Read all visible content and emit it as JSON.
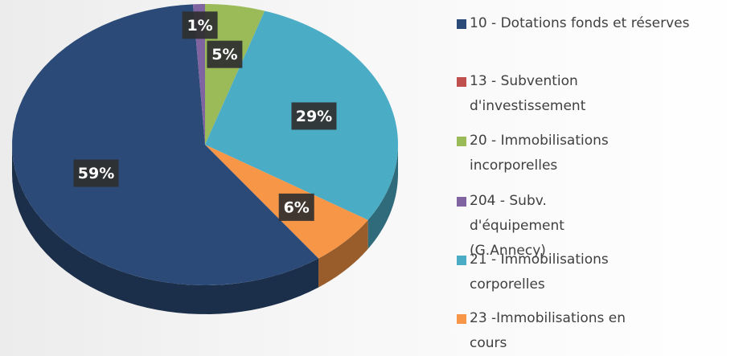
{
  "chart_data": {
    "type": "pie",
    "categories": [
      "10 - Dotations fonds et réserves",
      "13 - Subvention d'investissement",
      "20 - Immobilisations incorporelles",
      "204 - Subv. d'équipement (G.Annecy)",
      "21 - Immobilisations corporelles",
      "23 -Immobilisations en cours"
    ],
    "values": [
      59,
      0,
      5,
      1,
      29,
      6
    ],
    "value_labels": [
      "59%",
      null,
      "5%",
      "1%",
      "29%",
      "6%"
    ],
    "colors": [
      "#2b4a78",
      "#c0504d",
      "#9bbb59",
      "#8064a2",
      "#4bacc6",
      "#f79646"
    ],
    "legend": "right"
  }
}
